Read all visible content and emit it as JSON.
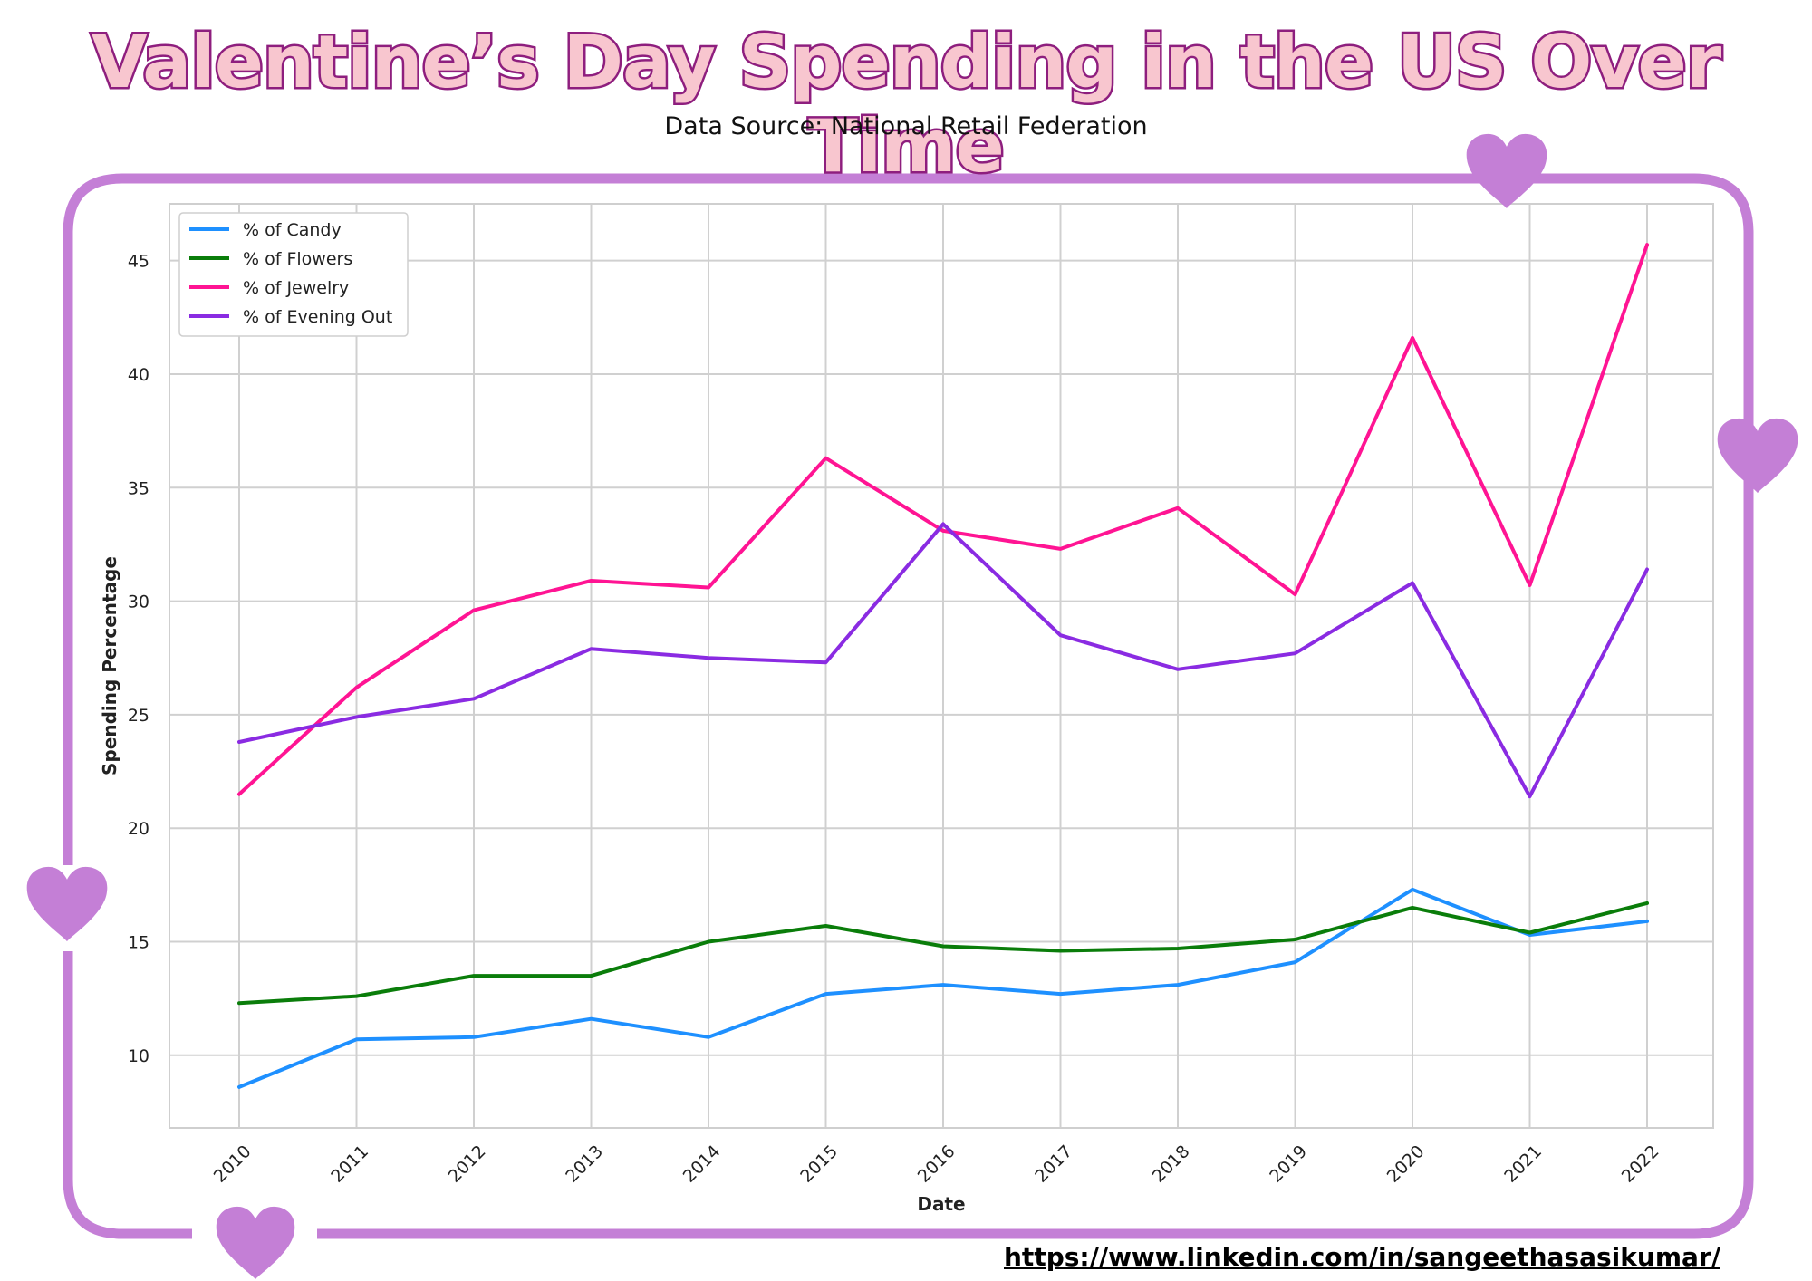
{
  "header": {
    "title": "Valentine’s Day Spending in the US Over Time",
    "subtitle": "Data Source: National Retail Federation"
  },
  "footer": {
    "link_text": "https://www.linkedin.com/in/sangeethasasikumar/"
  },
  "colors": {
    "frame": "#c47fd6",
    "heart": "#c47fd6",
    "title_fill": "#f8c6cf",
    "title_stroke": "#8e1e7e"
  },
  "decorations": [
    "heart-icon",
    "heart-icon",
    "heart-icon",
    "heart-icon"
  ],
  "chart_data": {
    "type": "line",
    "xlabel": "Date",
    "ylabel": "Spending Percentage",
    "x": [
      "2010",
      "2011",
      "2012",
      "2013",
      "2014",
      "2015",
      "2016",
      "2017",
      "2018",
      "2019",
      "2020",
      "2021",
      "2022"
    ],
    "ylim": [
      6.8,
      47.5
    ],
    "yticks": [
      10,
      15,
      20,
      25,
      30,
      35,
      40,
      45
    ],
    "grid": true,
    "legend_position": "top-left",
    "series": [
      {
        "name": "% of Candy",
        "color": "#1e90ff",
        "values": [
          8.6,
          10.7,
          10.8,
          11.6,
          10.8,
          12.7,
          13.1,
          12.7,
          13.1,
          14.1,
          17.3,
          15.3,
          15.9
        ]
      },
      {
        "name": "% of Flowers",
        "color": "#0a7d0a",
        "values": [
          12.3,
          12.6,
          13.5,
          13.5,
          15.0,
          15.7,
          14.8,
          14.6,
          14.7,
          15.1,
          16.5,
          15.4,
          16.7
        ]
      },
      {
        "name": "% of Jewelry",
        "color": "#ff1493",
        "values": [
          21.5,
          26.2,
          29.6,
          30.9,
          30.6,
          36.3,
          33.1,
          32.3,
          34.1,
          30.3,
          41.6,
          30.7,
          45.7
        ]
      },
      {
        "name": "% of Evening Out",
        "color": "#8a2be2",
        "values": [
          23.8,
          24.9,
          25.7,
          27.9,
          27.5,
          27.3,
          33.4,
          28.5,
          27.0,
          27.7,
          30.8,
          21.4,
          31.4
        ]
      }
    ]
  }
}
